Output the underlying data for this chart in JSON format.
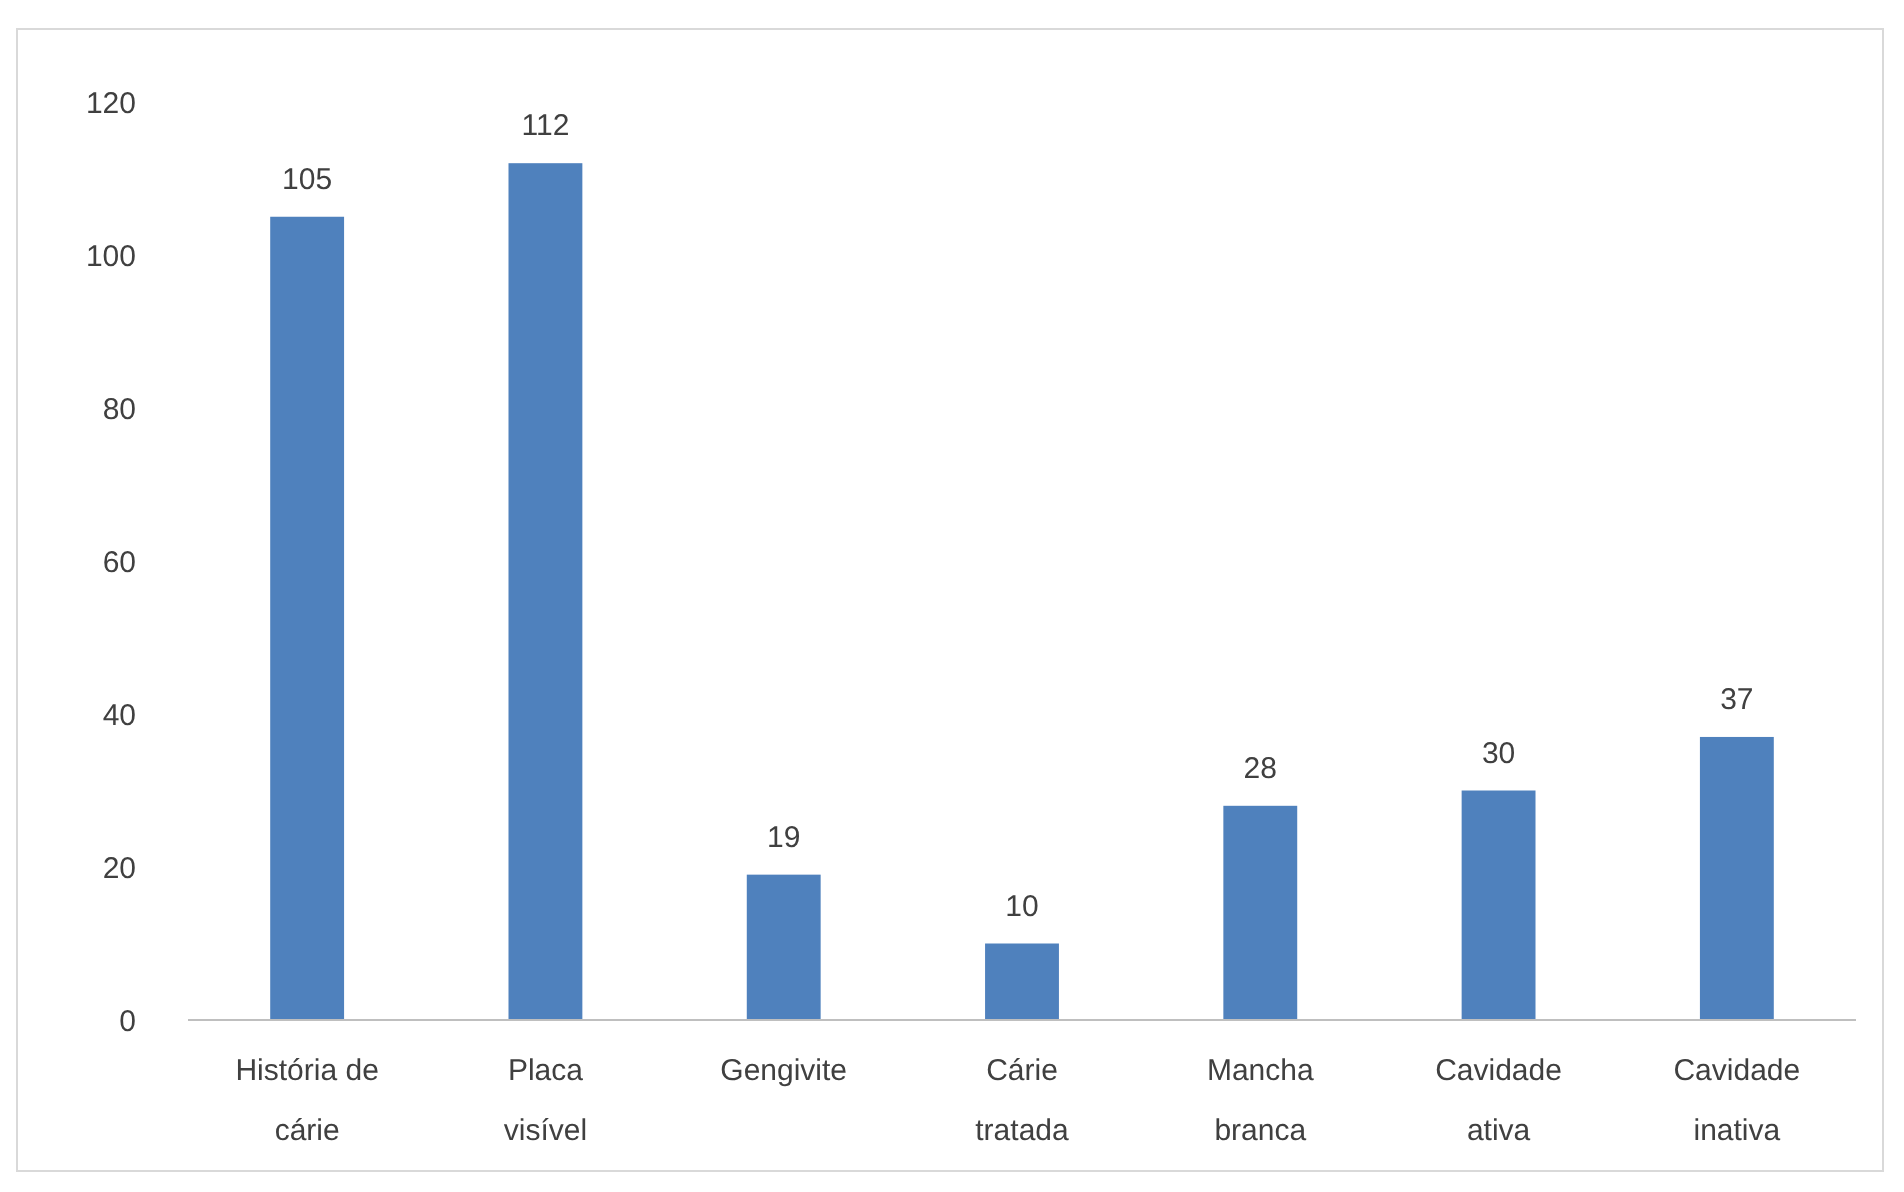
{
  "chart_data": {
    "type": "bar",
    "categories": [
      "História de cárie",
      "Placa visível",
      "Gengivite",
      "Cárie tratada",
      "Mancha branca",
      "Cavidade ativa",
      "Cavidade inativa"
    ],
    "values": [
      105,
      112,
      19,
      10,
      28,
      30,
      37
    ],
    "color": "#4f81bd",
    "ylim": [
      0,
      120
    ],
    "yticks": [
      0,
      20,
      40,
      60,
      80,
      100,
      120
    ],
    "data_labels": true,
    "grid": false
  }
}
